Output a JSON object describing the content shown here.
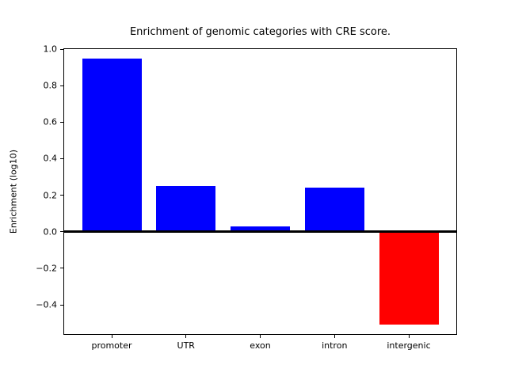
{
  "chart_data": {
    "type": "bar",
    "title": "Enrichment of genomic categories with CRE score.",
    "xlabel": "",
    "ylabel": "Enrichment (log10)",
    "categories": [
      "promoter",
      "UTR",
      "exon",
      "intron",
      "intergenic"
    ],
    "values": [
      0.95,
      0.25,
      0.03,
      0.24,
      -0.51
    ],
    "bar_colors": [
      "#0000ff",
      "#0000ff",
      "#0000ff",
      "#0000ff",
      "#ff0000"
    ],
    "positive_color": "#0000ff",
    "negative_color": "#ff0000",
    "ylim": [
      -0.56,
      1.0
    ],
    "xlim": [
      -0.64,
      4.64
    ],
    "bar_width": 0.8,
    "yticks": [
      1.0,
      0.8,
      0.6,
      0.4,
      0.2,
      0.0,
      -0.2,
      -0.4
    ],
    "ytick_labels": [
      "1.0",
      "0.8",
      "0.6",
      "0.4",
      "0.2",
      "0.0",
      "−0.2",
      "−0.4"
    ],
    "zero_line": true,
    "grid": false,
    "legend": null,
    "spine_color": "#000000",
    "background_color": "#ffffff"
  }
}
